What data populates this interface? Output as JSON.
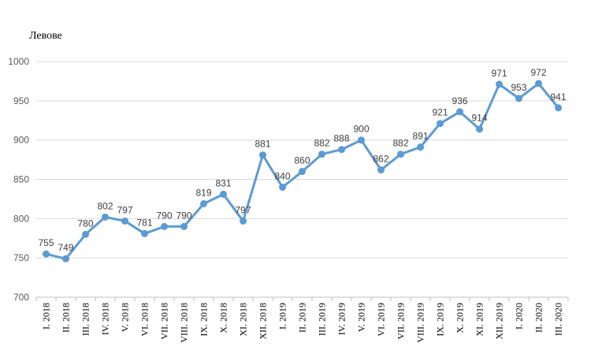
{
  "chart_data": {
    "type": "line",
    "ylabel": "Левове",
    "ylim": [
      700,
      1000
    ],
    "yticks": [
      700,
      750,
      800,
      850,
      900,
      950,
      1000
    ],
    "grid": true,
    "series_color": "#5B9BD5",
    "categories": [
      "I. 2018",
      "II. 2018",
      "III. 2018",
      "IV. 2018",
      "V. 2018",
      "VI. 2018",
      "VII. 2018",
      "VIII. 2018",
      "IX. 2018",
      "X. 2018",
      "XI. 2018",
      "XII. 2018",
      "I. 2019",
      "II. 2019",
      "III. 2019",
      "IV. 2019",
      "V. 2019",
      "VI. 2019",
      "VII. 2019",
      "VIII. 2019",
      "IX. 2019",
      "X. 2019",
      "XI. 2019",
      "XII. 2019",
      "I. 2020",
      "II. 2020",
      "III. 2020"
    ],
    "values": [
      755,
      749,
      780,
      802,
      797,
      781,
      790,
      790,
      819,
      831,
      797,
      881,
      840,
      860,
      882,
      888,
      900,
      862,
      882,
      891,
      921,
      936,
      914,
      971,
      953,
      972,
      941
    ]
  }
}
